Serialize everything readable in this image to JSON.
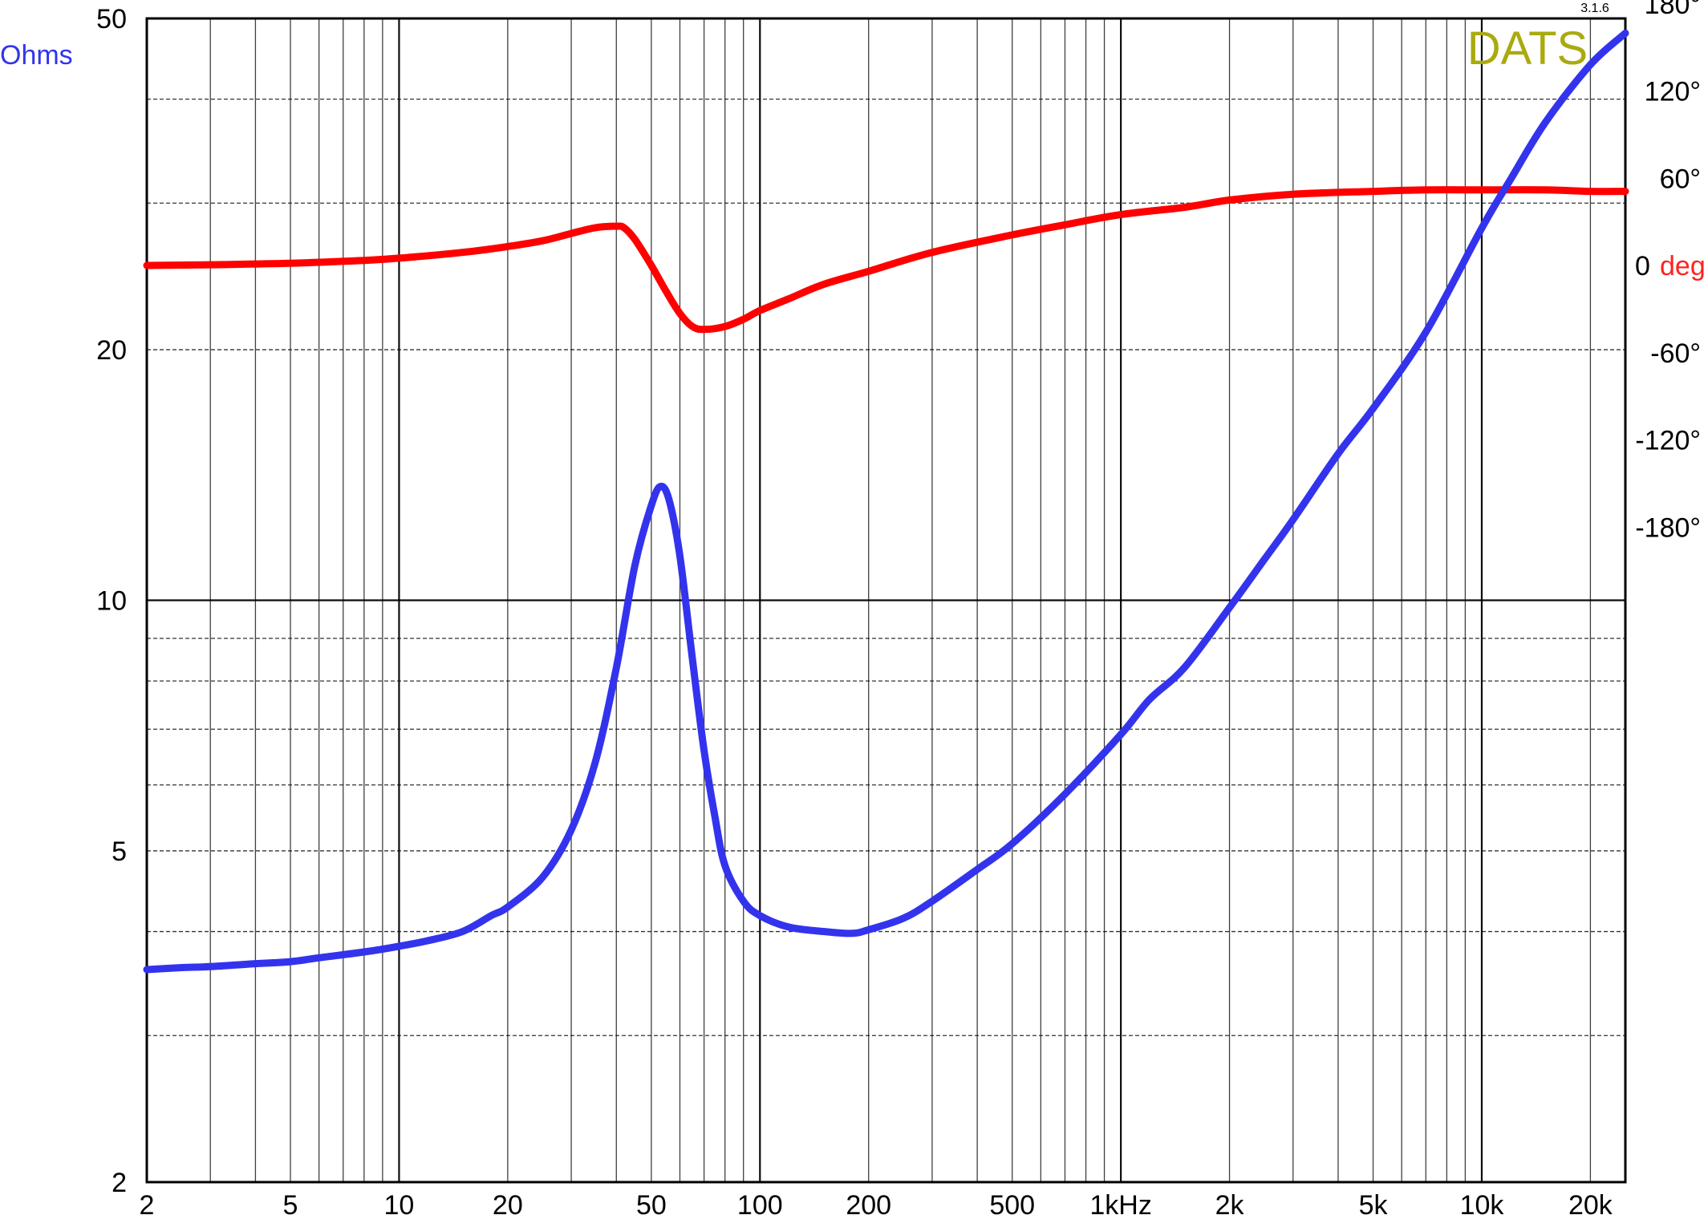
{
  "chart_data": {
    "type": "line",
    "title": "",
    "brand": "DATS",
    "version": "3.1.6",
    "x_axis": {
      "scale": "log",
      "range": [
        2,
        25000
      ],
      "tick_labels": [
        {
          "value": 2,
          "label": "2"
        },
        {
          "value": 5,
          "label": "5"
        },
        {
          "value": 10,
          "label": "10"
        },
        {
          "value": 20,
          "label": "20"
        },
        {
          "value": 50,
          "label": "50"
        },
        {
          "value": 100,
          "label": "100"
        },
        {
          "value": 200,
          "label": "200"
        },
        {
          "value": 500,
          "label": "500"
        },
        {
          "value": 1000,
          "label": "1kHz"
        },
        {
          "value": 2000,
          "label": "2k"
        },
        {
          "value": 5000,
          "label": "5k"
        },
        {
          "value": 10000,
          "label": "10k"
        },
        {
          "value": 20000,
          "label": "20k"
        }
      ]
    },
    "y_axis_left": {
      "label": "Ohms",
      "scale": "log",
      "range": [
        2,
        50
      ],
      "tick_labels": [
        {
          "value": 2,
          "label": "2"
        },
        {
          "value": 5,
          "label": "5"
        },
        {
          "value": 10,
          "label": "10"
        },
        {
          "value": 20,
          "label": "20"
        },
        {
          "value": 50,
          "label": "50"
        }
      ]
    },
    "y_axis_right": {
      "unit_prefix": "0",
      "label": "deg",
      "scale": "linear",
      "tick_labels": [
        {
          "value": 180,
          "label": "180°"
        },
        {
          "value": 120,
          "label": "120°"
        },
        {
          "value": 60,
          "label": "60°"
        },
        {
          "value": -60,
          "label": "-60°"
        },
        {
          "value": -120,
          "label": "-120°"
        },
        {
          "value": -180,
          "label": "-180°"
        }
      ]
    },
    "grid": true,
    "series": [
      {
        "color": "#3333ee",
        "axis": "left",
        "points": [
          [
            2,
            3.6
          ],
          [
            2.5,
            3.62
          ],
          [
            3,
            3.63
          ],
          [
            4,
            3.66
          ],
          [
            5,
            3.68
          ],
          [
            6,
            3.72
          ],
          [
            8,
            3.78
          ],
          [
            10,
            3.84
          ],
          [
            12,
            3.9
          ],
          [
            15,
            4.0
          ],
          [
            18,
            4.18
          ],
          [
            20,
            4.28
          ],
          [
            25,
            4.65
          ],
          [
            30,
            5.3
          ],
          [
            35,
            6.4
          ],
          [
            40,
            8.3
          ],
          [
            45,
            11.0
          ],
          [
            50,
            13.0
          ],
          [
            53,
            13.7
          ],
          [
            56,
            13.2
          ],
          [
            60,
            11.3
          ],
          [
            65,
            8.5
          ],
          [
            70,
            6.6
          ],
          [
            75,
            5.5
          ],
          [
            80,
            4.8
          ],
          [
            90,
            4.35
          ],
          [
            100,
            4.18
          ],
          [
            120,
            4.05
          ],
          [
            150,
            4.0
          ],
          [
            180,
            3.98
          ],
          [
            200,
            4.02
          ],
          [
            250,
            4.15
          ],
          [
            300,
            4.35
          ],
          [
            400,
            4.75
          ],
          [
            500,
            5.1
          ],
          [
            700,
            5.85
          ],
          [
            1000,
            6.9
          ],
          [
            1200,
            7.6
          ],
          [
            1500,
            8.3
          ],
          [
            2000,
            9.8
          ],
          [
            2500,
            11.2
          ],
          [
            3000,
            12.5
          ],
          [
            4000,
            15.0
          ],
          [
            5000,
            17.0
          ],
          [
            7000,
            21.0
          ],
          [
            10000,
            28.0
          ],
          [
            12000,
            32.0
          ],
          [
            15000,
            37.5
          ],
          [
            20000,
            44.0
          ],
          [
            25000,
            48.0
          ]
        ]
      },
      {
        "color": "#ff0000",
        "axis": "right",
        "points": [
          [
            2,
            0
          ],
          [
            3,
            0.5
          ],
          [
            5,
            1.5
          ],
          [
            8,
            3.5
          ],
          [
            10,
            5
          ],
          [
            15,
            9
          ],
          [
            20,
            13
          ],
          [
            25,
            17
          ],
          [
            30,
            22
          ],
          [
            35,
            26
          ],
          [
            40,
            27
          ],
          [
            42,
            26
          ],
          [
            45,
            18
          ],
          [
            50,
            0
          ],
          [
            55,
            -18
          ],
          [
            60,
            -33
          ],
          [
            65,
            -42
          ],
          [
            70,
            -44
          ],
          [
            80,
            -42
          ],
          [
            90,
            -37
          ],
          [
            100,
            -31
          ],
          [
            120,
            -23
          ],
          [
            150,
            -13
          ],
          [
            200,
            -4
          ],
          [
            300,
            9
          ],
          [
            500,
            21
          ],
          [
            700,
            28
          ],
          [
            1000,
            35
          ],
          [
            1500,
            40
          ],
          [
            2000,
            45
          ],
          [
            3000,
            49
          ],
          [
            5000,
            51
          ],
          [
            7000,
            52
          ],
          [
            10000,
            52
          ],
          [
            15000,
            52
          ],
          [
            20000,
            51
          ],
          [
            25000,
            51
          ]
        ]
      }
    ]
  }
}
